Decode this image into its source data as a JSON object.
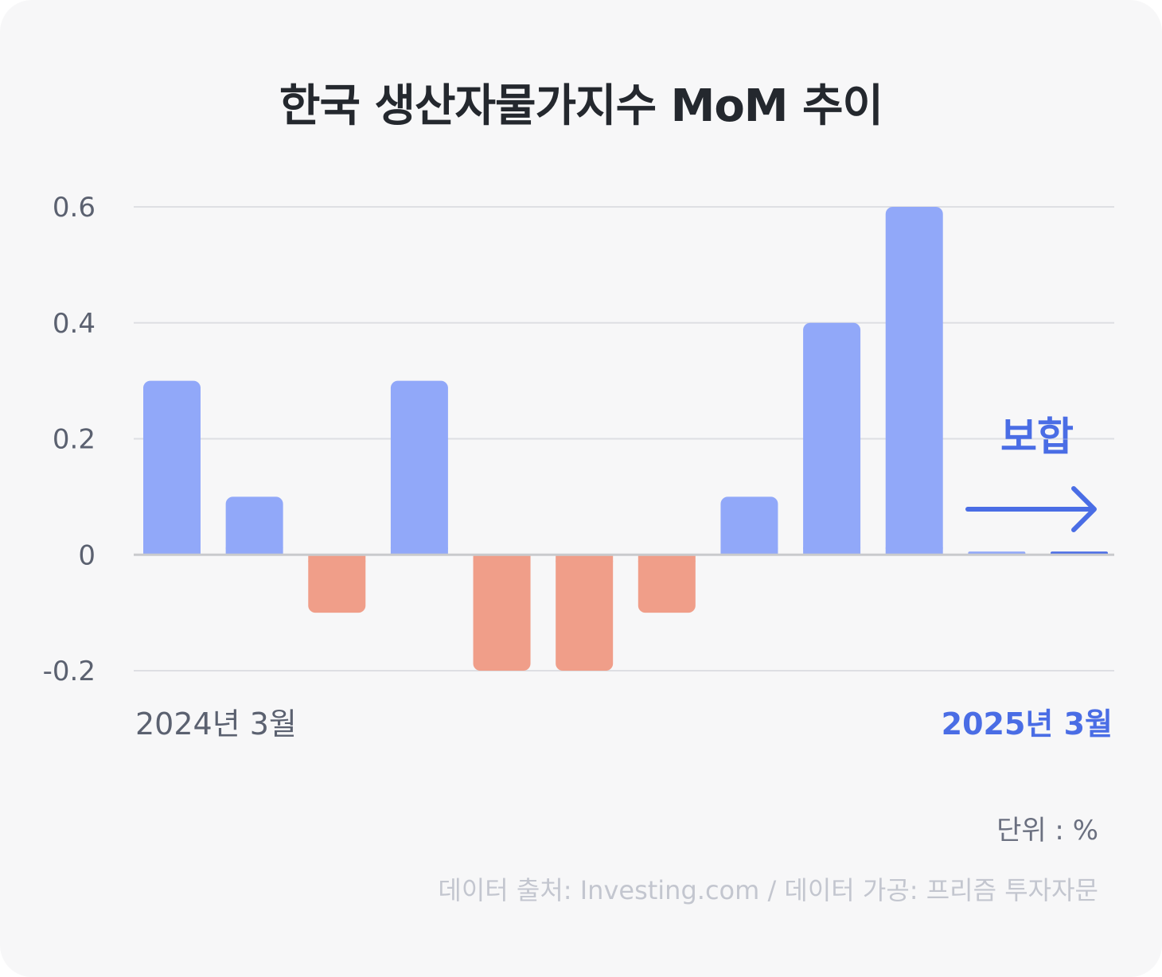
{
  "colors": {
    "background": "#f7f7f8",
    "positive": "#91a8f9",
    "negative": "#f09e89",
    "accent": "#4a6de5",
    "grid": "#dedfe3",
    "zero_line": "#c9cacd"
  },
  "chart_data": {
    "type": "bar",
    "title": "한국 생산자물가지수 MoM 추이",
    "xlabel": "",
    "ylabel": "",
    "ylim": [
      -0.2,
      0.6
    ],
    "yticks": [
      {
        "value": 0.6,
        "label": "0.6"
      },
      {
        "value": 0.4,
        "label": "0.4"
      },
      {
        "value": 0.2,
        "label": "0.2"
      },
      {
        "value": 0,
        "label": "0"
      },
      {
        "value": -0.2,
        "label": "-0.2"
      }
    ],
    "grid": true,
    "categories": [
      "2024년 3월",
      "",
      "",
      "",
      "",
      "",
      "",
      "",
      "",
      "",
      "",
      "2025년 3월"
    ],
    "x_label_start": "2024년 3월",
    "x_label_end": "2025년 3월",
    "values": [
      0.3,
      0.1,
      -0.1,
      0.3,
      -0.2,
      -0.2,
      -0.1,
      0.1,
      0.4,
      0.6,
      0.0,
      0.0
    ],
    "annotation": "보합",
    "unit_label": "단위 : %",
    "source": "데이터 출처: Investing.com / 데이터 가공: 프리즘 투자자문"
  }
}
